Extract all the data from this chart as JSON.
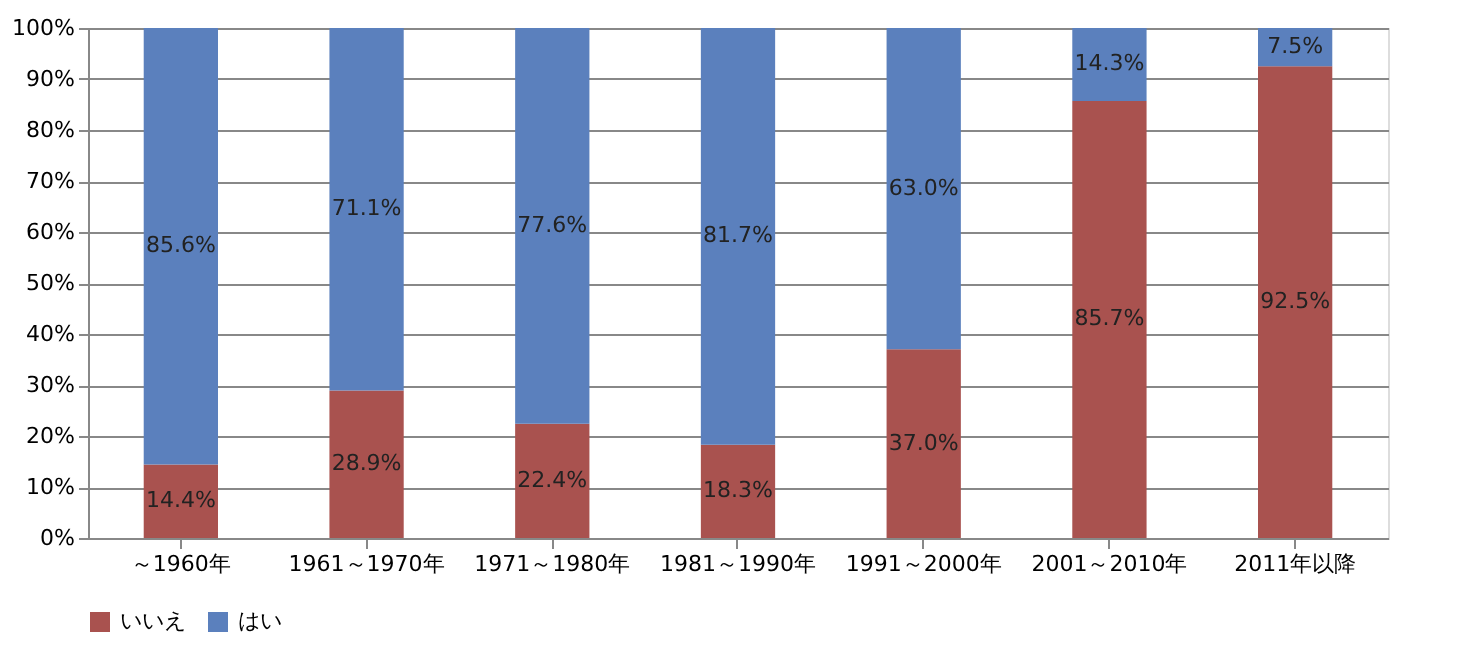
{
  "chart_data": {
    "type": "bar",
    "stacked": true,
    "categories": [
      "～1960年",
      "1961～1970年",
      "1971～1980年",
      "1981～1990年",
      "1991～2000年",
      "2001～2010年",
      "2011年以降"
    ],
    "series": [
      {
        "name": "いいえ",
        "color": "#a9524f",
        "values": [
          14.4,
          28.9,
          22.4,
          18.3,
          37.0,
          85.7,
          92.5
        ],
        "value_labels": [
          "14.4%",
          "28.9%",
          "22.4%",
          "18.3%",
          "37.0%",
          "85.7%",
          "92.5%"
        ]
      },
      {
        "name": "はい",
        "color": "#5b80bd",
        "values": [
          85.6,
          71.1,
          77.6,
          81.7,
          63.0,
          14.3,
          7.5
        ],
        "value_labels": [
          "85.6%",
          "71.1%",
          "77.6%",
          "81.7%",
          "63.0%",
          "14.3%",
          "7.5%"
        ]
      }
    ],
    "ylim": [
      0,
      100
    ],
    "yticks": [
      {
        "value": 0,
        "label": "0%"
      },
      {
        "value": 10,
        "label": "10%"
      },
      {
        "value": 20,
        "label": "20%"
      },
      {
        "value": 30,
        "label": "30%"
      },
      {
        "value": 40,
        "label": "40%"
      },
      {
        "value": 50,
        "label": "50%"
      },
      {
        "value": 60,
        "label": "60%"
      },
      {
        "value": 70,
        "label": "70%"
      },
      {
        "value": 80,
        "label": "80%"
      },
      {
        "value": 90,
        "label": "90%"
      },
      {
        "value": 100,
        "label": "100%"
      }
    ],
    "grid": "y",
    "legend": "bottom"
  }
}
